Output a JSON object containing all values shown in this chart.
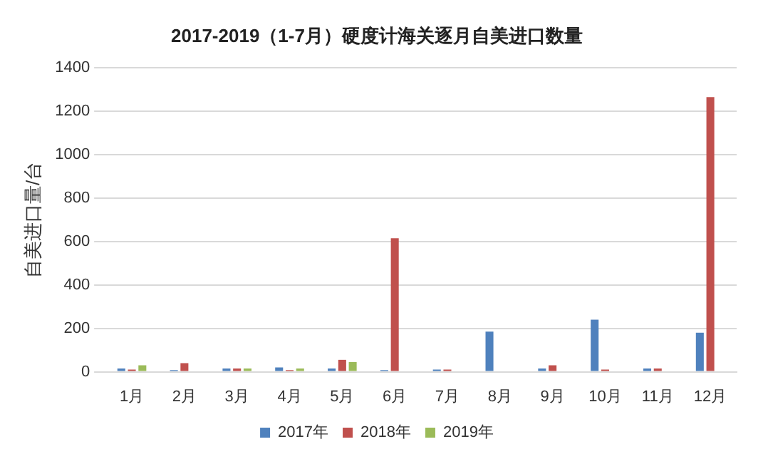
{
  "chart_data": {
    "type": "bar",
    "title": "2017-2019（1-7月）硬度计海关逐月自美进口数量",
    "ylabel": "自美进口量/台",
    "categories": [
      "1月",
      "2月",
      "3月",
      "4月",
      "5月",
      "6月",
      "7月",
      "8月",
      "9月",
      "10月",
      "11月",
      "12月"
    ],
    "series": [
      {
        "name": "2017年",
        "color": "#4f81bd",
        "values": [
          15,
          8,
          15,
          20,
          15,
          8,
          10,
          185,
          15,
          240,
          15,
          180
        ]
      },
      {
        "name": "2018年",
        "color": "#c0504d",
        "values": [
          10,
          40,
          15,
          8,
          55,
          615,
          10,
          0,
          30,
          10,
          15,
          1265
        ]
      },
      {
        "name": "2019年",
        "color": "#9bbb59",
        "values": [
          30,
          null,
          15,
          15,
          45,
          0,
          0,
          null,
          null,
          null,
          null,
          null
        ]
      }
    ],
    "ylim": [
      0,
      1400
    ],
    "yticks": [
      0,
      200,
      400,
      600,
      800,
      1000,
      1200,
      1400
    ],
    "grid": "y",
    "legend": "bottom"
  }
}
